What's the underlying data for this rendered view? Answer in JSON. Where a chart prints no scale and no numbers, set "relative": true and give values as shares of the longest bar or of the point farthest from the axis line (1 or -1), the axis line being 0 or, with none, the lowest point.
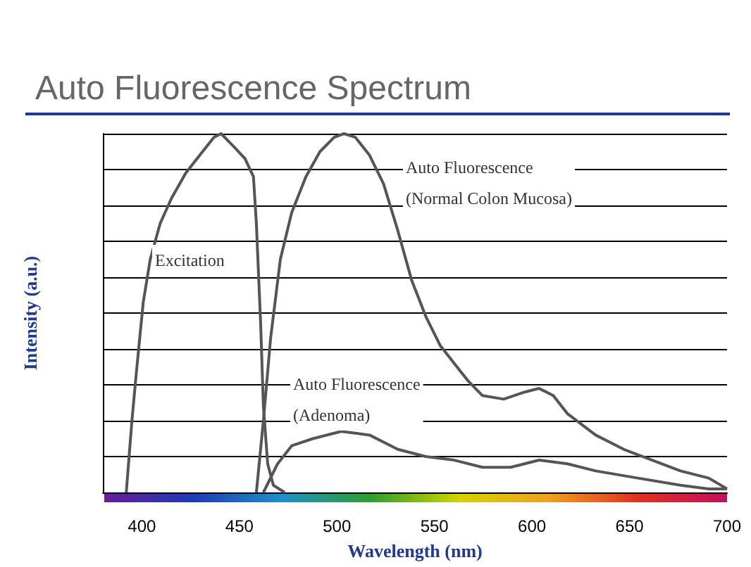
{
  "chart_data": {
    "type": "line",
    "title": "Auto Fluorescence Spectrum",
    "xlabel": "Wavelength (nm)",
    "ylabel": "Intensity (a.u.)",
    "relative": true,
    "grid": "y",
    "marker": "none",
    "line_style": "solid",
    "xlim": [
      380,
      700
    ],
    "xticks": [
      400,
      450,
      500,
      550,
      600,
      650,
      700
    ],
    "series": [
      {
        "name": "Excitation",
        "color": "#555555",
        "x": [
          392,
          394.9,
          397.1,
          400.7,
          404.3,
          409.4,
          415.2,
          422.5,
          429.7,
          437,
          440.6,
          444.2,
          447.8,
          452.9,
          457.2,
          458.7,
          460.9,
          462.3,
          464.5,
          467.4,
          473.2
        ],
        "values": [
          0,
          0.2,
          0.33,
          0.53,
          0.65,
          0.75,
          0.82,
          0.89,
          0.94,
          0.99,
          1,
          0.98,
          0.96,
          0.93,
          0.88,
          0.75,
          0.47,
          0.24,
          0.08,
          0.02,
          0
        ]
      },
      {
        "name": "Auto Fluorescence\n(Normal Colon Mucosa)",
        "color": "#555555",
        "x": [
          458.7,
          462.3,
          466,
          471,
          476.8,
          484.1,
          491.3,
          498.6,
          503.6,
          509.4,
          516.7,
          523.9,
          531.2,
          538.4,
          545.6,
          552.9,
          560.1,
          567.4,
          574.6,
          585.5,
          596.4,
          603.6,
          610.9,
          618.1,
          632.6,
          647.1,
          661.6,
          676.1,
          690.6,
          700
        ],
        "values": [
          0,
          0.2,
          0.43,
          0.65,
          0.78,
          0.88,
          0.95,
          0.99,
          1,
          0.99,
          0.94,
          0.86,
          0.73,
          0.59,
          0.49,
          0.41,
          0.36,
          0.31,
          0.27,
          0.26,
          0.28,
          0.29,
          0.27,
          0.22,
          0.16,
          0.12,
          0.09,
          0.06,
          0.04,
          0.01
        ]
      },
      {
        "name": "Auto Fluorescence\n(Adenoma)",
        "color": "#555555",
        "x": [
          462.3,
          469.6,
          476.8,
          487.7,
          502.2,
          516.7,
          531.2,
          545.6,
          560.1,
          574.6,
          589.1,
          603.6,
          618.1,
          632.6,
          654.3,
          676.1,
          690.6,
          700
        ],
        "values": [
          0,
          0.08,
          0.13,
          0.15,
          0.17,
          0.16,
          0.12,
          0.1,
          0.09,
          0.07,
          0.07,
          0.09,
          0.08,
          0.06,
          0.04,
          0.02,
          0.01,
          0.01
        ]
      }
    ]
  }
}
